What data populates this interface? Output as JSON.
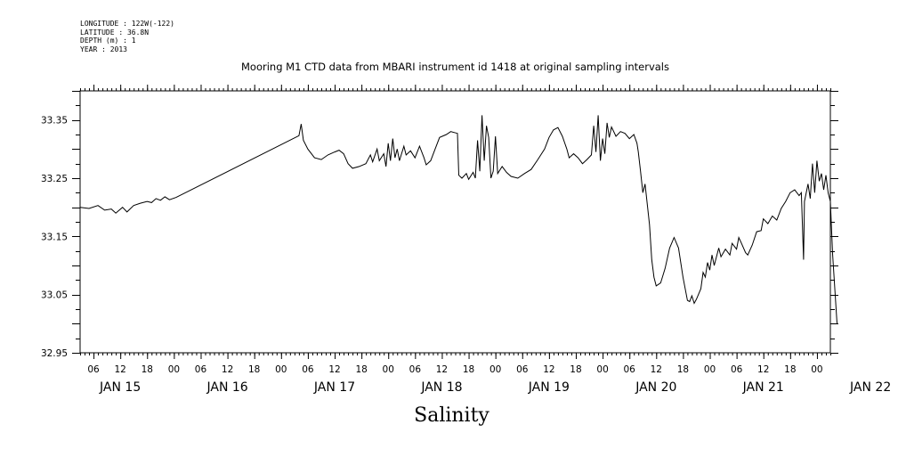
{
  "meta": {
    "longitude": "LONGITUDE : 122W(-122)",
    "latitude": "LATITUDE : 36.8N",
    "depth": "DEPTH (m) : 1",
    "year": "YEAR : 2013"
  },
  "chart_data": {
    "type": "line",
    "title": "Mooring M1 CTD data from MBARI instrument id 1418 at original sampling intervals",
    "xlabel": "Salinity",
    "ylabel": "",
    "ylim": [
      32.95,
      33.4
    ],
    "yticks": [
      "33.35",
      "33.25",
      "33.15",
      "33.05",
      "32.95"
    ],
    "xlim_hours": [
      3,
      171
    ],
    "x_hour_ticks": [
      "06",
      "12",
      "18",
      "00",
      "06",
      "12",
      "18",
      "00",
      "06",
      "12",
      "18",
      "00",
      "06",
      "12",
      "18",
      "00",
      "06",
      "12",
      "18",
      "00",
      "06",
      "12",
      "18",
      "00",
      "06",
      "12",
      "18",
      "00"
    ],
    "x_day_labels": [
      "JAN 15",
      "JAN 16",
      "JAN 17",
      "JAN 18",
      "JAN 19",
      "JAN 20",
      "JAN 21",
      "JAN 22"
    ],
    "x_unit": "hours since 2013-01-15 00:00",
    "series": [
      {
        "points": [
          [
            3.0,
            33.2
          ],
          [
            5.0,
            33.198
          ],
          [
            7.0,
            33.203
          ],
          [
            8.5,
            33.195
          ],
          [
            10.0,
            33.197
          ],
          [
            11.0,
            33.19
          ],
          [
            12.5,
            33.2
          ],
          [
            13.5,
            33.192
          ],
          [
            15.0,
            33.203
          ],
          [
            16.5,
            33.207
          ],
          [
            18.0,
            33.21
          ],
          [
            19.0,
            33.208
          ],
          [
            20.0,
            33.215
          ],
          [
            21.0,
            33.212
          ],
          [
            22.0,
            33.218
          ],
          [
            23.0,
            33.213
          ],
          [
            24.5,
            33.217
          ],
          [
            52.0,
            33.323
          ],
          [
            52.5,
            33.343
          ],
          [
            53.0,
            33.315
          ],
          [
            54.0,
            33.3
          ],
          [
            55.5,
            33.285
          ],
          [
            57.0,
            33.282
          ],
          [
            58.5,
            33.29
          ],
          [
            60.0,
            33.295
          ],
          [
            61.0,
            33.298
          ],
          [
            62.0,
            33.292
          ],
          [
            63.0,
            33.275
          ],
          [
            64.0,
            33.267
          ],
          [
            65.5,
            33.27
          ],
          [
            67.0,
            33.275
          ],
          [
            68.0,
            33.29
          ],
          [
            68.5,
            33.278
          ],
          [
            69.5,
            33.3
          ],
          [
            70.0,
            33.28
          ],
          [
            71.0,
            33.292
          ],
          [
            71.5,
            33.27
          ],
          [
            72.0,
            33.31
          ],
          [
            72.5,
            33.28
          ],
          [
            73.0,
            33.318
          ],
          [
            73.5,
            33.285
          ],
          [
            74.0,
            33.3
          ],
          [
            74.5,
            33.28
          ],
          [
            75.5,
            33.305
          ],
          [
            76.0,
            33.29
          ],
          [
            77.0,
            33.297
          ],
          [
            78.0,
            33.285
          ],
          [
            79.0,
            33.305
          ],
          [
            80.0,
            33.285
          ],
          [
            80.5,
            33.273
          ],
          [
            81.5,
            33.28
          ],
          [
            82.5,
            33.3
          ],
          [
            83.5,
            33.32
          ],
          [
            85.0,
            33.325
          ],
          [
            86.0,
            33.33
          ],
          [
            87.5,
            33.327
          ],
          [
            87.8,
            33.255
          ],
          [
            88.5,
            33.25
          ],
          [
            89.5,
            33.258
          ],
          [
            90.0,
            33.248
          ],
          [
            91.0,
            33.26
          ],
          [
            91.5,
            33.25
          ],
          [
            92.0,
            33.315
          ],
          [
            92.5,
            33.262
          ],
          [
            93.0,
            33.358
          ],
          [
            93.5,
            33.28
          ],
          [
            94.0,
            33.34
          ],
          [
            94.5,
            33.32
          ],
          [
            95.0,
            33.25
          ],
          [
            95.5,
            33.262
          ],
          [
            96.0,
            33.322
          ],
          [
            96.5,
            33.258
          ],
          [
            97.5,
            33.27
          ],
          [
            98.5,
            33.26
          ],
          [
            99.5,
            33.253
          ],
          [
            101.0,
            33.25
          ],
          [
            102.5,
            33.258
          ],
          [
            104.0,
            33.265
          ],
          [
            105.5,
            33.282
          ],
          [
            107.0,
            33.3
          ],
          [
            108.0,
            33.32
          ],
          [
            109.0,
            33.333
          ],
          [
            110.0,
            33.337
          ],
          [
            111.0,
            33.322
          ],
          [
            112.0,
            33.3
          ],
          [
            112.5,
            33.285
          ],
          [
            113.5,
            33.292
          ],
          [
            114.5,
            33.285
          ],
          [
            115.5,
            33.275
          ],
          [
            116.5,
            33.282
          ],
          [
            117.5,
            33.29
          ],
          [
            118.0,
            33.34
          ],
          [
            118.5,
            33.295
          ],
          [
            119.0,
            33.358
          ],
          [
            119.5,
            33.28
          ],
          [
            120.0,
            33.318
          ],
          [
            120.5,
            33.292
          ],
          [
            121.0,
            33.345
          ],
          [
            121.5,
            33.32
          ],
          [
            122.0,
            33.338
          ],
          [
            123.0,
            33.322
          ],
          [
            124.0,
            33.33
          ],
          [
            125.0,
            33.327
          ],
          [
            126.0,
            33.318
          ],
          [
            127.0,
            33.325
          ],
          [
            127.7,
            33.31
          ],
          [
            128.0,
            33.295
          ],
          [
            128.5,
            33.262
          ],
          [
            129.0,
            33.225
          ],
          [
            129.5,
            33.24
          ],
          [
            130.0,
            33.205
          ],
          [
            130.5,
            33.17
          ],
          [
            131.0,
            33.11
          ],
          [
            131.5,
            33.08
          ],
          [
            132.0,
            33.065
          ],
          [
            133.0,
            33.07
          ],
          [
            134.0,
            33.095
          ],
          [
            135.0,
            33.13
          ],
          [
            136.0,
            33.148
          ],
          [
            137.0,
            33.13
          ],
          [
            138.0,
            33.08
          ],
          [
            139.0,
            33.04
          ],
          [
            139.5,
            33.038
          ],
          [
            140.0,
            33.048
          ],
          [
            140.5,
            33.035
          ],
          [
            141.0,
            33.042
          ],
          [
            142.0,
            33.06
          ],
          [
            142.5,
            33.088
          ],
          [
            143.0,
            33.08
          ],
          [
            143.5,
            33.105
          ],
          [
            144.0,
            33.092
          ],
          [
            144.5,
            33.118
          ],
          [
            145.0,
            33.1
          ],
          [
            146.0,
            33.13
          ],
          [
            146.5,
            33.115
          ],
          [
            147.5,
            33.128
          ],
          [
            148.5,
            33.118
          ],
          [
            149.0,
            33.138
          ],
          [
            150.0,
            33.128
          ],
          [
            150.5,
            33.148
          ],
          [
            151.0,
            33.14
          ],
          [
            152.0,
            33.122
          ],
          [
            152.5,
            33.118
          ],
          [
            153.5,
            33.135
          ],
          [
            154.5,
            33.158
          ],
          [
            155.5,
            33.16
          ],
          [
            156.0,
            33.18
          ],
          [
            157.0,
            33.172
          ],
          [
            158.0,
            33.185
          ],
          [
            159.0,
            33.178
          ],
          [
            160.0,
            33.198
          ],
          [
            161.0,
            33.21
          ],
          [
            162.0,
            33.225
          ],
          [
            163.0,
            33.23
          ],
          [
            164.0,
            33.22
          ],
          [
            164.5,
            33.225
          ],
          [
            165.0,
            33.11
          ],
          [
            165.2,
            33.21
          ],
          [
            166.0,
            33.24
          ],
          [
            166.5,
            33.215
          ],
          [
            167.0,
            33.275
          ],
          [
            167.5,
            33.225
          ],
          [
            168.0,
            33.28
          ],
          [
            168.5,
            33.245
          ],
          [
            169.0,
            33.258
          ],
          [
            169.5,
            33.23
          ],
          [
            170.0,
            33.255
          ],
          [
            170.5,
            33.225
          ],
          [
            171.0,
            33.21
          ],
          [
            171.5,
            33.12
          ],
          [
            172.0,
            33.06
          ],
          [
            172.5,
            33.0
          ]
        ]
      }
    ],
    "grid": false,
    "line_color": "#000000"
  }
}
